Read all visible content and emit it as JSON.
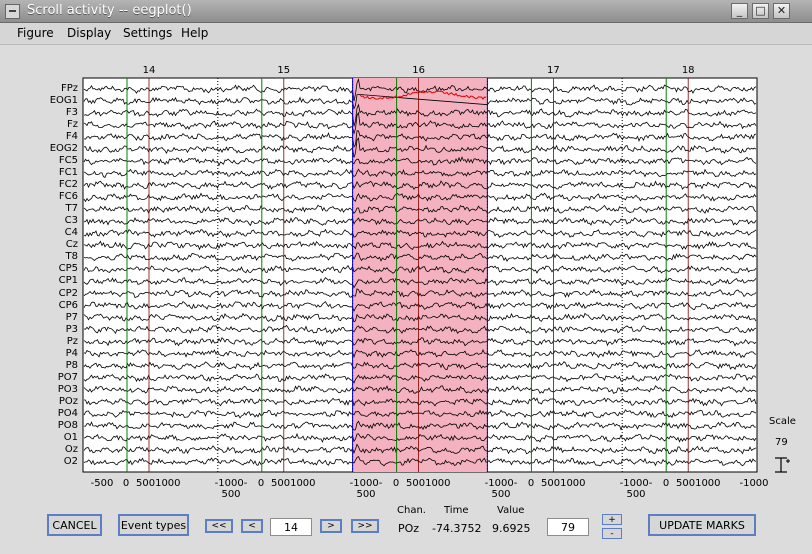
{
  "window": {
    "title": "Scroll activity -- eegplot()",
    "buttons": {
      "minimize": "_",
      "maximize": "□",
      "close": "✕"
    }
  },
  "menu": {
    "items": [
      "Figure",
      "Display",
      "Settings",
      "Help"
    ]
  },
  "channels": [
    "FPz",
    "EOG1",
    "F3",
    "Fz",
    "F4",
    "EOG2",
    "FC5",
    "FC1",
    "FC2",
    "FC6",
    "T7",
    "C3",
    "C4",
    "Cz",
    "T8",
    "CP5",
    "CP1",
    "CP2",
    "CP6",
    "P7",
    "P3",
    "Pz",
    "P4",
    "P8",
    "PO7",
    "PO3",
    "POz",
    "PO4",
    "PO8",
    "O1",
    "Oz",
    "O2"
  ],
  "epochs": [
    "14",
    "15",
    "16",
    "17",
    "18"
  ],
  "x_tick_labels": [
    "-500",
    "0",
    "5001000",
    "-1000-500",
    "0",
    "5001000",
    "-1000-500",
    "0",
    "5001000",
    "-1000-500",
    "0",
    "5001000",
    "-1000-500",
    "0",
    "5001000",
    "-1000"
  ],
  "scale": {
    "label": "Scale",
    "value": "79"
  },
  "colors": {
    "highlight": "#f4b2c0",
    "red_trace": "#e60000",
    "trace": "#000000",
    "event_marker": "#008000",
    "epoch_border": "#800000",
    "boundary": "#0000cc"
  },
  "controls": {
    "cancel": "CANCEL",
    "event_types": "Event types",
    "first": "<<",
    "prev": "<",
    "epoch_value": "14",
    "next": ">",
    "last": ">>",
    "scale_value": "79",
    "plus": "+",
    "minus": "-",
    "update": "UPDATE MARKS"
  },
  "readout": {
    "chan_label": "Chan.",
    "time_label": "Time",
    "value_label": "Value",
    "chan": "POz",
    "time": "-74.3752",
    "value": "9.6925"
  }
}
